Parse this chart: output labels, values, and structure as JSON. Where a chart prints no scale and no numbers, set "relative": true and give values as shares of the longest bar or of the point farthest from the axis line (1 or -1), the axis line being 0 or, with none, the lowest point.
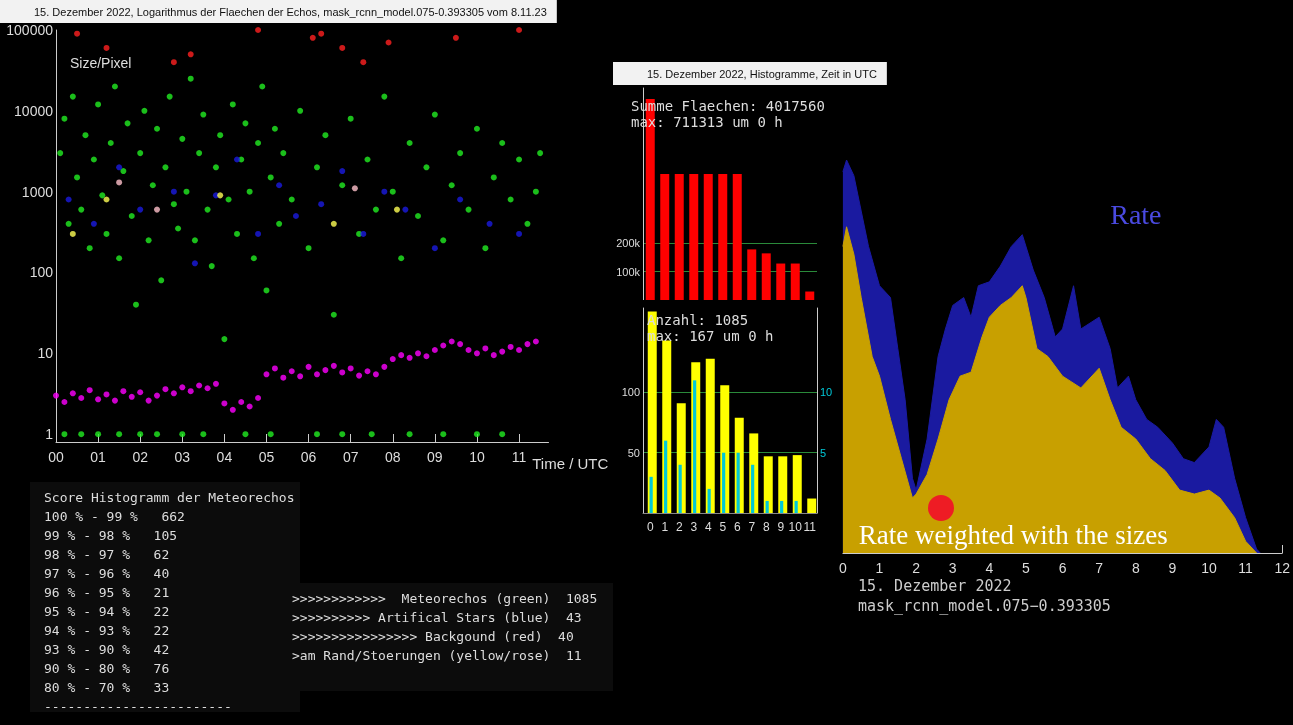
{
  "chart_data": [
    {
      "type": "scatter",
      "title": "15. Dezember 2022, Logarithmus der Flaechen der Echos, mask_rcnn_model.075-0.393305 vom 8.11.23",
      "xlabel": "Time / UTC",
      "ylabel": "Size/Pixel",
      "log": "y",
      "marker": "circle",
      "xlim": [
        0,
        11.7
      ],
      "xticks": [
        {
          "value": 0,
          "label": "00"
        },
        {
          "value": 1,
          "label": "01"
        },
        {
          "value": 2,
          "label": "02"
        },
        {
          "value": 3,
          "label": "03"
        },
        {
          "value": 4,
          "label": "04"
        },
        {
          "value": 5,
          "label": "05"
        },
        {
          "value": 6,
          "label": "06"
        },
        {
          "value": 7,
          "label": "07"
        },
        {
          "value": 8,
          "label": "08"
        },
        {
          "value": 9,
          "label": "09"
        },
        {
          "value": 10,
          "label": "10"
        },
        {
          "value": 11,
          "label": "11"
        }
      ],
      "ylim": [
        0.8,
        100000
      ],
      "yticks": [
        1,
        10,
        100,
        1000,
        10000,
        100000
      ],
      "series": [
        {
          "color": "#ff00ff",
          "x": [
            0,
            0.2,
            0.4,
            0.6,
            0.8,
            1.0,
            1.2,
            1.4,
            1.6,
            1.8,
            2.0,
            2.2,
            2.4,
            2.6,
            2.8,
            3.0,
            3.2,
            3.4,
            3.6,
            3.8,
            4.0,
            4.2,
            4.4,
            4.6,
            4.8,
            5.0,
            5.2,
            5.4,
            5.6,
            5.8,
            6.0,
            6.2,
            6.4,
            6.6,
            6.8,
            7.0,
            7.2,
            7.4,
            7.6,
            7.8,
            8.0,
            8.2,
            8.4,
            8.6,
            8.8,
            9.0,
            9.2,
            9.4,
            9.6,
            9.8,
            10.0,
            10.2,
            10.4,
            10.6,
            10.8,
            11.0,
            11.2,
            11.4
          ],
          "values": [
            3,
            2.5,
            3.2,
            2.8,
            3.5,
            2.7,
            3.1,
            2.6,
            3.4,
            2.9,
            3.3,
            2.6,
            3,
            3.6,
            3.2,
            3.8,
            3.4,
            4,
            3.7,
            4.2,
            2.4,
            2,
            2.5,
            2.2,
            2.8,
            5.5,
            6.5,
            5,
            6,
            5.2,
            6.8,
            5.5,
            6.2,
            7,
            5.8,
            6.5,
            5.3,
            6,
            5.5,
            6.8,
            8.5,
            9.5,
            8.8,
            10,
            9.2,
            11,
            12.5,
            14,
            13,
            11,
            10,
            11.5,
            9.5,
            10.5,
            12,
            11,
            13,
            14
          ]
        },
        {
          "color": "#22ee22",
          "x": [
            0.1,
            0.2,
            0.3,
            0.4,
            0.5,
            0.6,
            0.7,
            0.8,
            0.9,
            1.0,
            1.1,
            1.2,
            1.3,
            1.4,
            1.5,
            1.6,
            1.7,
            1.8,
            1.9,
            2.0,
            2.1,
            2.2,
            2.3,
            2.4,
            2.5,
            2.6,
            2.7,
            2.8,
            2.9,
            3.0,
            3.1,
            3.2,
            3.3,
            3.4,
            3.5,
            3.6,
            3.7,
            3.8,
            3.9,
            4.0,
            4.1,
            4.2,
            4.3,
            4.4,
            4.5,
            4.6,
            4.7,
            4.8,
            4.9,
            5.0,
            5.1,
            5.2,
            5.3,
            5.4,
            5.6,
            5.8,
            6.0,
            6.2,
            6.4,
            6.6,
            6.8,
            7.0,
            7.2,
            7.4,
            7.6,
            7.8,
            8.0,
            8.2,
            8.4,
            8.6,
            8.8,
            9.0,
            9.2,
            9.4,
            9.6,
            9.8,
            10.0,
            10.2,
            10.4,
            10.6,
            10.8,
            11.0,
            11.2,
            11.4,
            11.5,
            0.2,
            0.6,
            1.0,
            1.5,
            2.0,
            2.4,
            3.0,
            3.5,
            4.5,
            5.1,
            6.2,
            6.8,
            7.5,
            8.4,
            9.2,
            10.0,
            10.6
          ],
          "values": [
            3000,
            8000,
            400,
            15000,
            1500,
            600,
            5000,
            200,
            2500,
            12000,
            900,
            300,
            4000,
            20000,
            150,
            1800,
            7000,
            500,
            40,
            3000,
            10000,
            250,
            1200,
            6000,
            80,
            2000,
            15000,
            700,
            350,
            4500,
            1000,
            25000,
            250,
            3000,
            9000,
            600,
            120,
            2000,
            5000,
            15,
            800,
            12000,
            300,
            2500,
            7000,
            1000,
            150,
            4000,
            20000,
            60,
            1500,
            6000,
            400,
            3000,
            800,
            10000,
            200,
            2000,
            5000,
            30,
            1200,
            8000,
            300,
            2500,
            600,
            15000,
            1000,
            150,
            4000,
            500,
            2000,
            9000,
            250,
            1200,
            3000,
            600,
            6000,
            200,
            1500,
            4000,
            800,
            2500,
            400,
            1000,
            3000,
            1,
            1,
            1,
            1,
            1,
            1,
            1,
            1,
            1,
            1,
            1,
            1,
            1,
            1,
            1,
            1,
            1
          ]
        },
        {
          "color": "#1a1ae0",
          "x": [
            0.3,
            0.9,
            1.5,
            2.0,
            2.8,
            3.3,
            3.8,
            4.3,
            4.8,
            5.3,
            5.7,
            6.3,
            6.8,
            7.3,
            7.8,
            8.3,
            9.0,
            9.6,
            10.3,
            11.0
          ],
          "values": [
            800,
            400,
            2000,
            600,
            1000,
            130,
            900,
            2500,
            300,
            1200,
            500,
            700,
            1800,
            300,
            1000,
            600,
            200,
            800,
            400,
            300
          ]
        },
        {
          "color": "#ff2020",
          "x": [
            0.5,
            1.2,
            2.8,
            3.2,
            4.8,
            6.1,
            6.3,
            6.8,
            7.3,
            7.9,
            9.5,
            11.0
          ],
          "values": [
            90000,
            60000,
            40000,
            50000,
            100000,
            80000,
            90000,
            60000,
            40000,
            70000,
            80000,
            100000
          ]
        },
        {
          "color": "#ffff55",
          "x": [
            0.4,
            1.2,
            3.9,
            6.6,
            8.1
          ],
          "values": [
            300,
            800,
            900,
            400,
            600
          ]
        },
        {
          "color": "#ffc0cb",
          "x": [
            1.5,
            2.4,
            7.1
          ],
          "values": [
            1300,
            600,
            1100
          ]
        }
      ]
    },
    {
      "type": "bar",
      "title": "15. Dezember 2022, Histogramme, Zeit in UTC",
      "annotations": [
        "Summe Flaechen: 4017560",
        "max: 711313 um 0 h"
      ],
      "grid": "y",
      "tick_labels": "y",
      "categories": [
        "0",
        "1",
        "2",
        "3",
        "4",
        "5",
        "6",
        "7",
        "8",
        "9",
        "10",
        "11"
      ],
      "ylim": [
        0,
        750000
      ],
      "yticks": [
        {
          "value": 100000,
          "label": "100k"
        },
        {
          "value": 200000,
          "label": "200k"
        }
      ],
      "series": [
        {
          "color": "#ff0000",
          "values": [
            711313,
            446000,
            446000,
            446000,
            446000,
            446000,
            446000,
            179000,
            165000,
            129000,
            129000,
            30000
          ]
        }
      ]
    },
    {
      "type": "bar",
      "annotations": [
        "Anzahl: 1085",
        "max: 167 um 0 h"
      ],
      "grid": "y",
      "categories": [
        "0",
        "1",
        "2",
        "3",
        "4",
        "5",
        "6",
        "7",
        "8",
        "9",
        "10",
        "11"
      ],
      "ylim": [
        0,
        170
      ],
      "yticks": [
        50,
        100
      ],
      "y2lim": [
        0,
        17
      ],
      "y2ticks": [
        5,
        10
      ],
      "series": [
        {
          "color": "#ffff00",
          "values": [
            167,
            143,
            91,
            125,
            128,
            106,
            79,
            66,
            47,
            47,
            48,
            12
          ]
        },
        {
          "color": "#00c8d8",
          "axis": "y2",
          "values": [
            3,
            6,
            4,
            11,
            2,
            5,
            5,
            4,
            1,
            1,
            1,
            0
          ]
        }
      ]
    },
    {
      "type": "area",
      "relative": true,
      "annotations": [
        "15. Dezember 2022",
        "mask_rcnn_model.075−0.393305"
      ],
      "xlim": [
        0,
        12
      ],
      "xticks": [
        0,
        1,
        2,
        3,
        4,
        5,
        6,
        7,
        8,
        9,
        10,
        11,
        12
      ],
      "series": [
        {
          "name": "Rate",
          "color": "#1a1aa0",
          "x": [
            0,
            0.1,
            0.3,
            0.5,
            0.7,
            1.0,
            1.3,
            1.5,
            1.7,
            1.9,
            2.0,
            2.3,
            2.6,
            2.8,
            3.0,
            3.3,
            3.5,
            3.7,
            4.0,
            4.3,
            4.6,
            4.9,
            5.2,
            5.5,
            5.8,
            6.0,
            6.3,
            6.5,
            7.0,
            7.3,
            7.5,
            7.8,
            8.0,
            8.3,
            8.6,
            9.0,
            9.3,
            9.6,
            10.0,
            10.2,
            10.4,
            10.7,
            11.0,
            11.3,
            11.4
          ],
          "values": [
            0.97,
            1,
            0.96,
            0.87,
            0.78,
            0.68,
            0.65,
            0.52,
            0.39,
            0.19,
            0.16,
            0.29,
            0.5,
            0.57,
            0.63,
            0.65,
            0.6,
            0.68,
            0.69,
            0.73,
            0.78,
            0.81,
            0.72,
            0.65,
            0.55,
            0.57,
            0.68,
            0.57,
            0.6,
            0.52,
            0.42,
            0.45,
            0.39,
            0.34,
            0.32,
            0.28,
            0.24,
            0.23,
            0.27,
            0.34,
            0.32,
            0.19,
            0.09,
            0.01,
            0
          ]
        },
        {
          "name": "Rate weighted with the sizes",
          "color": "#c8a000",
          "x": [
            0,
            0.1,
            0.3,
            0.5,
            0.8,
            1.0,
            1.3,
            1.6,
            1.9,
            2.0,
            2.3,
            2.6,
            2.9,
            3.2,
            3.5,
            3.8,
            4.0,
            4.3,
            4.6,
            4.9,
            5.0,
            5.3,
            5.6,
            6.0,
            6.5,
            7.0,
            7.3,
            7.6,
            8.0,
            8.4,
            8.8,
            9.2,
            9.6,
            10.0,
            10.3,
            10.7,
            11.0,
            11.3
          ],
          "values": [
            0.78,
            0.83,
            0.76,
            0.65,
            0.5,
            0.45,
            0.34,
            0.24,
            0.14,
            0.15,
            0.2,
            0.29,
            0.39,
            0.45,
            0.46,
            0.55,
            0.6,
            0.63,
            0.65,
            0.68,
            0.65,
            0.52,
            0.5,
            0.45,
            0.42,
            0.47,
            0.39,
            0.32,
            0.29,
            0.24,
            0.21,
            0.16,
            0.15,
            0.16,
            0.14,
            0.09,
            0.03,
            0
          ]
        }
      ]
    },
    {
      "type": "other",
      "annotations": [
        "Score Histogramm der Meteorechos",
        "100 % - 99 %   662",
        "99 % - 98 %   105",
        "98 % - 97 %   62",
        "97 % - 96 %   40",
        "96 % - 95 %   21",
        "95 % - 94 %   22",
        "94 % - 93 %   22",
        "93 % - 90 %   42",
        "90 % - 80 %   76",
        "80 % - 70 %   33",
        "------------------------"
      ]
    },
    {
      "type": "other",
      "annotations": [
        ">>>>>>>>>>>>  Meteorechos (green)  1085",
        ">>>>>>>>>> Artifical Stars (blue)  43",
        ">>>>>>>>>>>>>>>> Backgound (red)  40",
        ">am Rand/Stoerungen (yellow/rose)  11"
      ]
    }
  ]
}
